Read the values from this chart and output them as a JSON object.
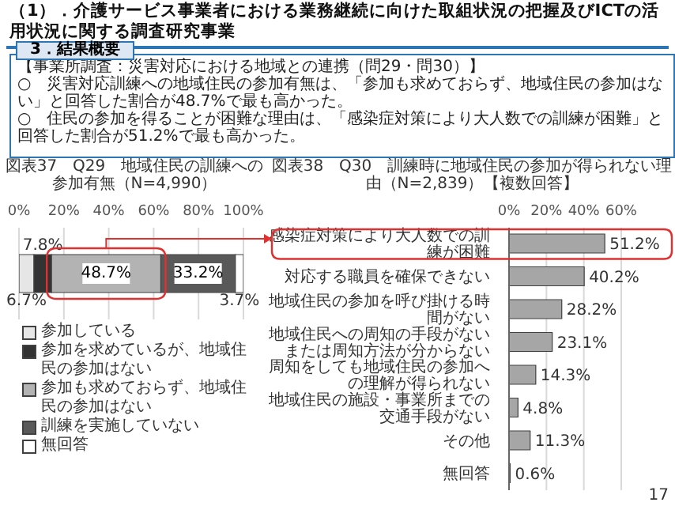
{
  "chart_data": [
    {
      "type": "other",
      "title": "（1）．介護サービス事業者における業務継続に向けた取組状況の把握及びICTの活用状況に関する調査研究事業",
      "subtitle": "3．結果概要",
      "annotations": [
        "【事業所調査：災害対応における地域との連携（問29・問30）】",
        "○　災害対応訓練への地域住民の参加有無は、「参加も求めておらず、地域住民の参加はない」と回答した割合が48.7%で最も高かった。",
        "○　住民の参加を得ることが困難な理由は、「感染症対策により大人数での訓練が困難」と回答した割合が51.2%で最も高かった。",
        "17"
      ]
    },
    {
      "type": "bar",
      "orientation": "horizontal",
      "stacked": true,
      "title": "図表37　Q29　地域住民の訓練への参加有無（N=4,990）",
      "categories": [
        null
      ],
      "series": [
        {
          "name": "参加している",
          "color": "#e6e6e6",
          "values": [
            6.7
          ],
          "value_labels": [
            "6.7%"
          ]
        },
        {
          "name": "参加を求めているが、地域住民の参加はない",
          "color": "#333333",
          "values": [
            7.8
          ],
          "value_labels": [
            "7.8%"
          ]
        },
        {
          "name": "参加も求めておらず、地域住民の参加はない",
          "color": "#b3b3b3",
          "values": [
            48.7
          ],
          "value_labels": [
            "48.7%"
          ]
        },
        {
          "name": "訓練を実施していない",
          "color": "#595959",
          "values": [
            33.2
          ],
          "value_labels": [
            "33.2%"
          ]
        },
        {
          "name": "無回答",
          "color": "#ffffff",
          "values": [
            3.7
          ],
          "value_labels": [
            "3.7%"
          ]
        }
      ],
      "xlim": [
        0,
        100
      ],
      "xticks": [
        {
          "value": 0,
          "label": "0%"
        },
        {
          "value": 20,
          "label": "20%"
        },
        {
          "value": 40,
          "label": "40%"
        },
        {
          "value": 60,
          "label": "60%"
        },
        {
          "value": 80,
          "label": "80%"
        },
        {
          "value": 100,
          "label": "100%"
        }
      ],
      "grid": "x",
      "legend": "bottom"
    },
    {
      "type": "bar",
      "orientation": "horizontal",
      "title": "図表38　Q30　訓練時に地域住民の参加が得られない理由（N=2,839）",
      "subtitle": "【複数回答】",
      "categories": [
        "感染症対策により大人数での訓練が困難",
        "対応する職員を確保できない",
        "地域住民の参加を呼び掛ける時間がない",
        "地域住民への周知の手段がないまたは周知方法が分からない",
        "周知をしても地域住民の参加への理解が得られない",
        "地域住民の施設・事業所までの交通手段がない",
        "その他",
        "無回答"
      ],
      "values": [
        51.2,
        40.2,
        28.2,
        23.1,
        14.3,
        4.8,
        11.3,
        0.6
      ],
      "value_labels": [
        "51.2%",
        "40.2%",
        "28.2%",
        "23.1%",
        "14.3%",
        "4.8%",
        "11.3%",
        "0.6%"
      ],
      "color": "#a6a6a6",
      "xlim": [
        0,
        60
      ],
      "xticks": [
        {
          "value": 0,
          "label": "0%"
        },
        {
          "value": 20,
          "label": "20%"
        },
        {
          "value": 40,
          "label": "40%"
        },
        {
          "value": 60,
          "label": "60%"
        }
      ],
      "grid": "x"
    }
  ]
}
